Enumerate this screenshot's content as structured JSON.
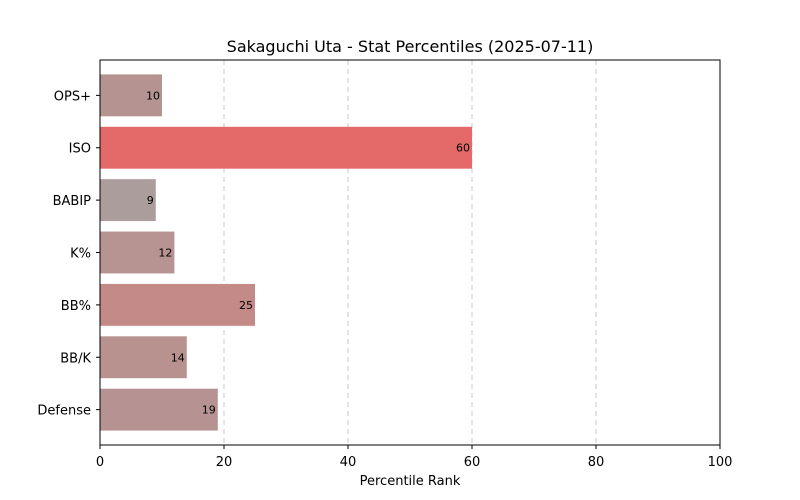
{
  "chart_data": {
    "type": "bar",
    "orientation": "horizontal",
    "title": "Sakaguchi Uta - Stat Percentiles (2025-07-11)",
    "xlabel": "Percentile Rank",
    "ylabel": "",
    "xlim": [
      0,
      100
    ],
    "xticks": [
      0,
      20,
      40,
      60,
      80,
      100
    ],
    "grid": "x-dashed",
    "categories": [
      "OPS+",
      "ISO",
      "BABIP",
      "K%",
      "BB%",
      "BB/K",
      "Defense"
    ],
    "values": [
      10,
      60,
      9,
      12,
      25,
      14,
      19
    ],
    "colors": [
      "#b59391",
      "#e46a6a",
      "#ab9d9c",
      "#b79392",
      "#c48a88",
      "#b8928f",
      "#b69392"
    ]
  }
}
